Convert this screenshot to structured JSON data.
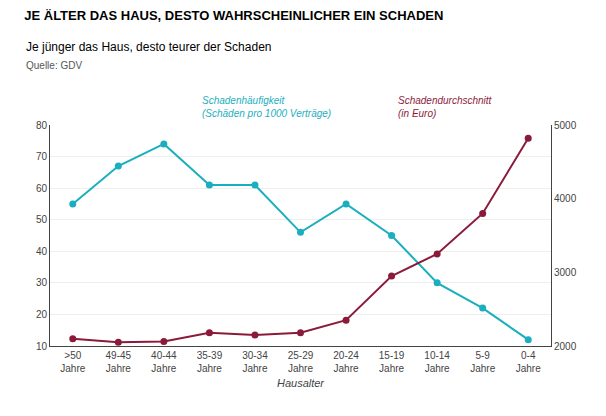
{
  "chart_data": {
    "type": "line",
    "title": "JE ÄLTER DAS HAUS, DESTO WAHRSCHEINLICHER EIN SCHADEN",
    "subtitle": "Je jünger das Haus, desto teurer der Schaden",
    "source": "Quelle: GDV",
    "xlabel": "Hausalter",
    "categories": [
      ">50\nJahre",
      "49-45\nJahre",
      "40-44\nJahre",
      "35-39\nJahre",
      "30-34\nJahre",
      "25-29\nJahre",
      "20-24\nJahre",
      "15-19\nJahre",
      "10-14\nJahre",
      "5-9\nJahre",
      "0-4\nJahre"
    ],
    "series": [
      {
        "color": "#1AAFBE",
        "marker": "circle",
        "line_style": "solid",
        "values": [
          55,
          67,
          74,
          61,
          61,
          46,
          55,
          45,
          30,
          22,
          12
        ]
      },
      {
        "color": "#8B1A3A",
        "marker": "circle",
        "line_style": "solid",
        "axis": "y2",
        "values": [
          2100,
          2050,
          2060,
          2180,
          2150,
          2180,
          2350,
          2950,
          3250,
          3800,
          4820
        ]
      }
    ],
    "ylim": [
      10,
      80
    ],
    "yticks": [
      10,
      20,
      30,
      40,
      50,
      60,
      70,
      80
    ],
    "y2lim": [
      2000,
      5000
    ],
    "y2ticks": [
      2000,
      3000,
      4000,
      5000
    ],
    "grid": true,
    "annotations": [
      "Schadenhäufigkeit\n(Schäden pro 1000 Verträge)",
      "Schadendurchschnitt\n(in Euro)"
    ]
  }
}
